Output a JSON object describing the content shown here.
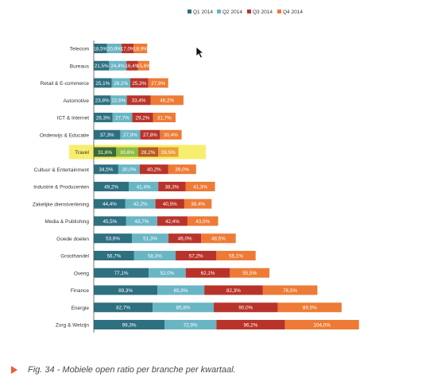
{
  "chart_data": {
    "type": "bar",
    "stacked": true,
    "orientation": "horizontal",
    "categories": [
      "Telecom",
      "Bureaus",
      "Retail & E-commerce",
      "Automotive",
      "ICT & Internet",
      "Onderwijs & Educatie",
      "Travel",
      "Cultuur & Entertainment",
      "Industrie & Producenten",
      "Zakelijke dienstverlening",
      "Media & Publishing",
      "Goede doelen",
      "Groothandel",
      "Overig",
      "Finance",
      "Energie",
      "Zorg & Welzijn"
    ],
    "series": [
      {
        "name": "Q1 2014",
        "color": "#2e6f80",
        "values": [
          18.5,
          21.5,
          25.1,
          23.8,
          26.3,
          37.3,
          31.6,
          34.5,
          49.2,
          44.4,
          45.5,
          53.6,
          56.7,
          77.1,
          89.3,
          82.7,
          99.3
        ],
        "labels": [
          "18,5%",
          "21,5%",
          "25,1%",
          "23,8%",
          "26,3%",
          "37,3%",
          "31,6%",
          "34,5%",
          "49,2%",
          "44,4%",
          "45,5%",
          "53,6%",
          "56,7%",
          "77,1%",
          "89,3%",
          "82,7%",
          "99,3%"
        ]
      },
      {
        "name": "Q2 2014",
        "color": "#6ab5c4",
        "values": [
          20.6,
          24.4,
          26.2,
          22.6,
          27.7,
          27.9,
          30.6,
          30.0,
          41.4,
          42.2,
          43.7,
          51.3,
          58.3,
          52.0,
          65.9,
          85.8,
          72.9
        ],
        "labels": [
          "20,6%",
          "24,4%",
          "26,2%",
          "22,6%",
          "27,7%",
          "27,9%",
          "30,6%",
          "30,0%",
          "41,4%",
          "42,2%",
          "43,7%",
          "51,3%",
          "58,3%",
          "52,0%",
          "65,9%",
          "85,8%",
          "72,9%"
        ]
      },
      {
        "name": "Q3 2014",
        "color": "#b8342b",
        "values": [
          17.0,
          16.4,
          25.3,
          33.4,
          29.2,
          27.8,
          28.2,
          40.2,
          38.3,
          40.5,
          42.4,
          46.0,
          57.2,
          62.1,
          82.3,
          90.0,
          96.2
        ],
        "labels": [
          "17,0%",
          "16,4%",
          "25,3%",
          "33,4%",
          "29,2%",
          "27,8%",
          "28,2%",
          "40,2%",
          "38,3%",
          "40,5%",
          "42,4%",
          "46,0%",
          "57,2%",
          "62,1%",
          "82,3%",
          "90,0%",
          "96,2%"
        ]
      },
      {
        "name": "Q4 2014",
        "color": "#ed7b36",
        "values": [
          18.9,
          15.6,
          27.9,
          46.2,
          31.7,
          30.4,
          28.5,
          39.0,
          41.3,
          38.4,
          43.0,
          48.5,
          55.1,
          55.5,
          76.5,
          89.5,
          104.0
        ],
        "labels": [
          "18,9%",
          "15,6%",
          "27,9%",
          "46,2%",
          "31,7%",
          "30,4%",
          "28,5%",
          "39,0%",
          "41,3%",
          "38,4%",
          "43,0%",
          "48,5%",
          "55,1%",
          "55,5%",
          "76,5%",
          "89,5%",
          "104,0%"
        ]
      }
    ],
    "highlight": {
      "category": "Travel",
      "color": "#f7ee6f",
      "segment_colors": [
        "#3a6b36",
        "#8dbd45",
        "#b85a22",
        "#e8a039"
      ]
    },
    "legend_position": "top",
    "grid": false
  },
  "caption": {
    "text": "Fig. 34 - Mobiele open ratio per branche per kwartaal.",
    "icon": "triangle-right-icon",
    "icon_color": "#e8613a"
  }
}
